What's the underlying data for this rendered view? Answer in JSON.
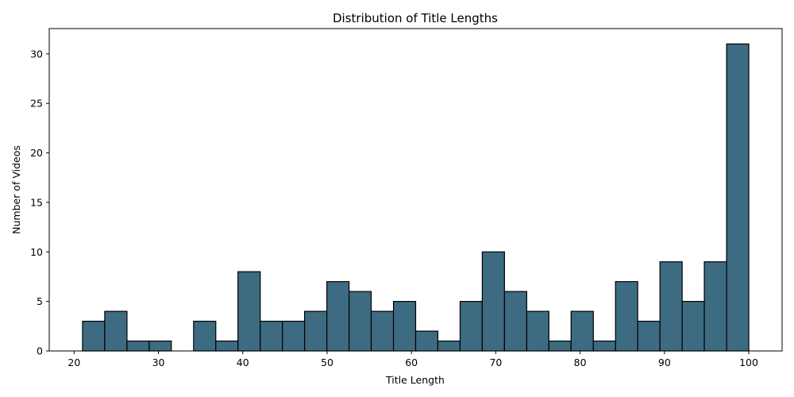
{
  "chart_data": {
    "type": "bar",
    "title": "Distribution of Title Lengths",
    "xlabel": "Title Length",
    "ylabel": "Number of Videos",
    "bin_edges": [
      21.0,
      23.63,
      26.27,
      28.9,
      31.53,
      34.17,
      36.8,
      39.43,
      42.07,
      44.7,
      47.33,
      49.97,
      52.6,
      55.23,
      57.87,
      60.5,
      63.13,
      65.77,
      68.4,
      71.03,
      73.67,
      76.3,
      78.93,
      81.57,
      84.2,
      86.83,
      89.47,
      92.1,
      94.73,
      97.37,
      100.0
    ],
    "values": [
      3,
      4,
      1,
      1,
      0,
      3,
      1,
      8,
      3,
      3,
      4,
      7,
      6,
      4,
      5,
      2,
      1,
      5,
      10,
      6,
      4,
      1,
      4,
      1,
      7,
      3,
      9,
      5,
      9,
      31
    ],
    "xlim": [
      17.05,
      103.95
    ],
    "ylim": [
      0,
      32.55
    ],
    "xticks": [
      20,
      30,
      40,
      50,
      60,
      70,
      80,
      90,
      100
    ],
    "yticks": [
      0,
      5,
      10,
      15,
      20,
      25,
      30
    ],
    "bar_color": "#3d6b82",
    "edge_color": "#000000",
    "grid": false,
    "legend": "none"
  }
}
